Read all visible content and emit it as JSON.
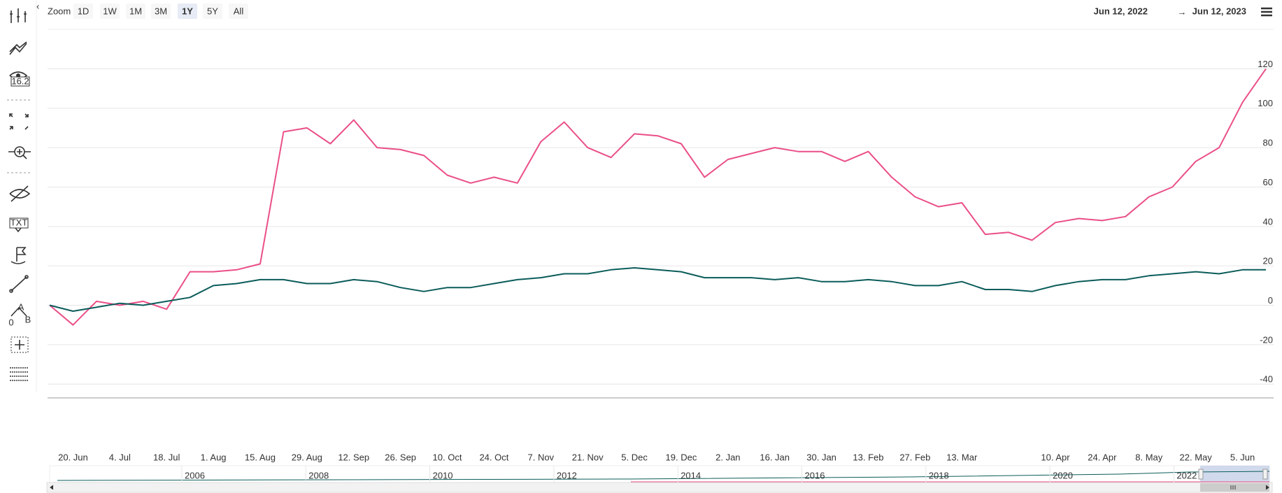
{
  "toolbar": {
    "texts": [
      "16.2",
      "TXT",
      "A",
      "0",
      "B"
    ]
  },
  "zoom": {
    "label": "Zoom",
    "buttons": [
      "1D",
      "1W",
      "1M",
      "3M",
      "1Y",
      "5Y",
      "All"
    ],
    "selected": "1Y"
  },
  "range": {
    "from": "Jun 12, 2022",
    "arrow": "→",
    "to": "Jun 12, 2023"
  },
  "chart_data": {
    "type": "line",
    "categories": [
      null,
      "20. Jun",
      null,
      "4. Jul",
      null,
      "18. Jul",
      null,
      "1. Aug",
      null,
      "15. Aug",
      null,
      "29. Aug",
      null,
      "12. Sep",
      null,
      "26. Sep",
      null,
      "10. Oct",
      null,
      "24. Oct",
      null,
      "7. Nov",
      null,
      "21. Nov",
      null,
      "5. Dec",
      null,
      "19. Dec",
      null,
      "2. Jan",
      null,
      "16. Jan",
      null,
      "30. Jan",
      null,
      "13. Feb",
      null,
      "27. Feb",
      null,
      "13. Mar",
      null,
      null,
      null,
      "10. Apr",
      null,
      "24. Apr",
      null,
      "8. May",
      null,
      "22. May",
      null,
      "5. Jun",
      null
    ],
    "series": [
      {
        "color": "#ea4f88",
        "values": [
          0,
          -10,
          2,
          0,
          2,
          -2,
          17,
          17,
          18,
          21,
          88,
          90,
          82,
          94,
          80,
          79,
          76,
          66,
          62,
          65,
          62,
          83,
          93,
          80,
          75,
          87,
          86,
          82,
          65,
          74,
          77,
          80,
          78,
          78,
          73,
          78,
          65,
          55,
          50,
          52,
          36,
          37,
          33,
          42,
          44,
          43,
          45,
          55,
          60,
          73,
          80,
          103,
          120
        ]
      },
      {
        "color": "#0b5c5a",
        "values": [
          0,
          -3,
          -1,
          1,
          0,
          2,
          4,
          10,
          11,
          13,
          13,
          11,
          11,
          13,
          12,
          9,
          7,
          9,
          9,
          11,
          13,
          14,
          16,
          16,
          18,
          19,
          18,
          17,
          14,
          14,
          14,
          13,
          14,
          12,
          12,
          13,
          12,
          10,
          10,
          12,
          8,
          8,
          7,
          10,
          12,
          13,
          13,
          15,
          16,
          17,
          16,
          18,
          18
        ]
      }
    ],
    "ylim": [
      -47,
      140
    ],
    "yticks": [
      -40,
      -20,
      0,
      20,
      40,
      60,
      80,
      100,
      120
    ],
    "grid": true
  },
  "navigator": {
    "labels": [
      "2006",
      "2008",
      "2010",
      "2012",
      "2014",
      "2016",
      "2018",
      "2020",
      "2022"
    ]
  }
}
